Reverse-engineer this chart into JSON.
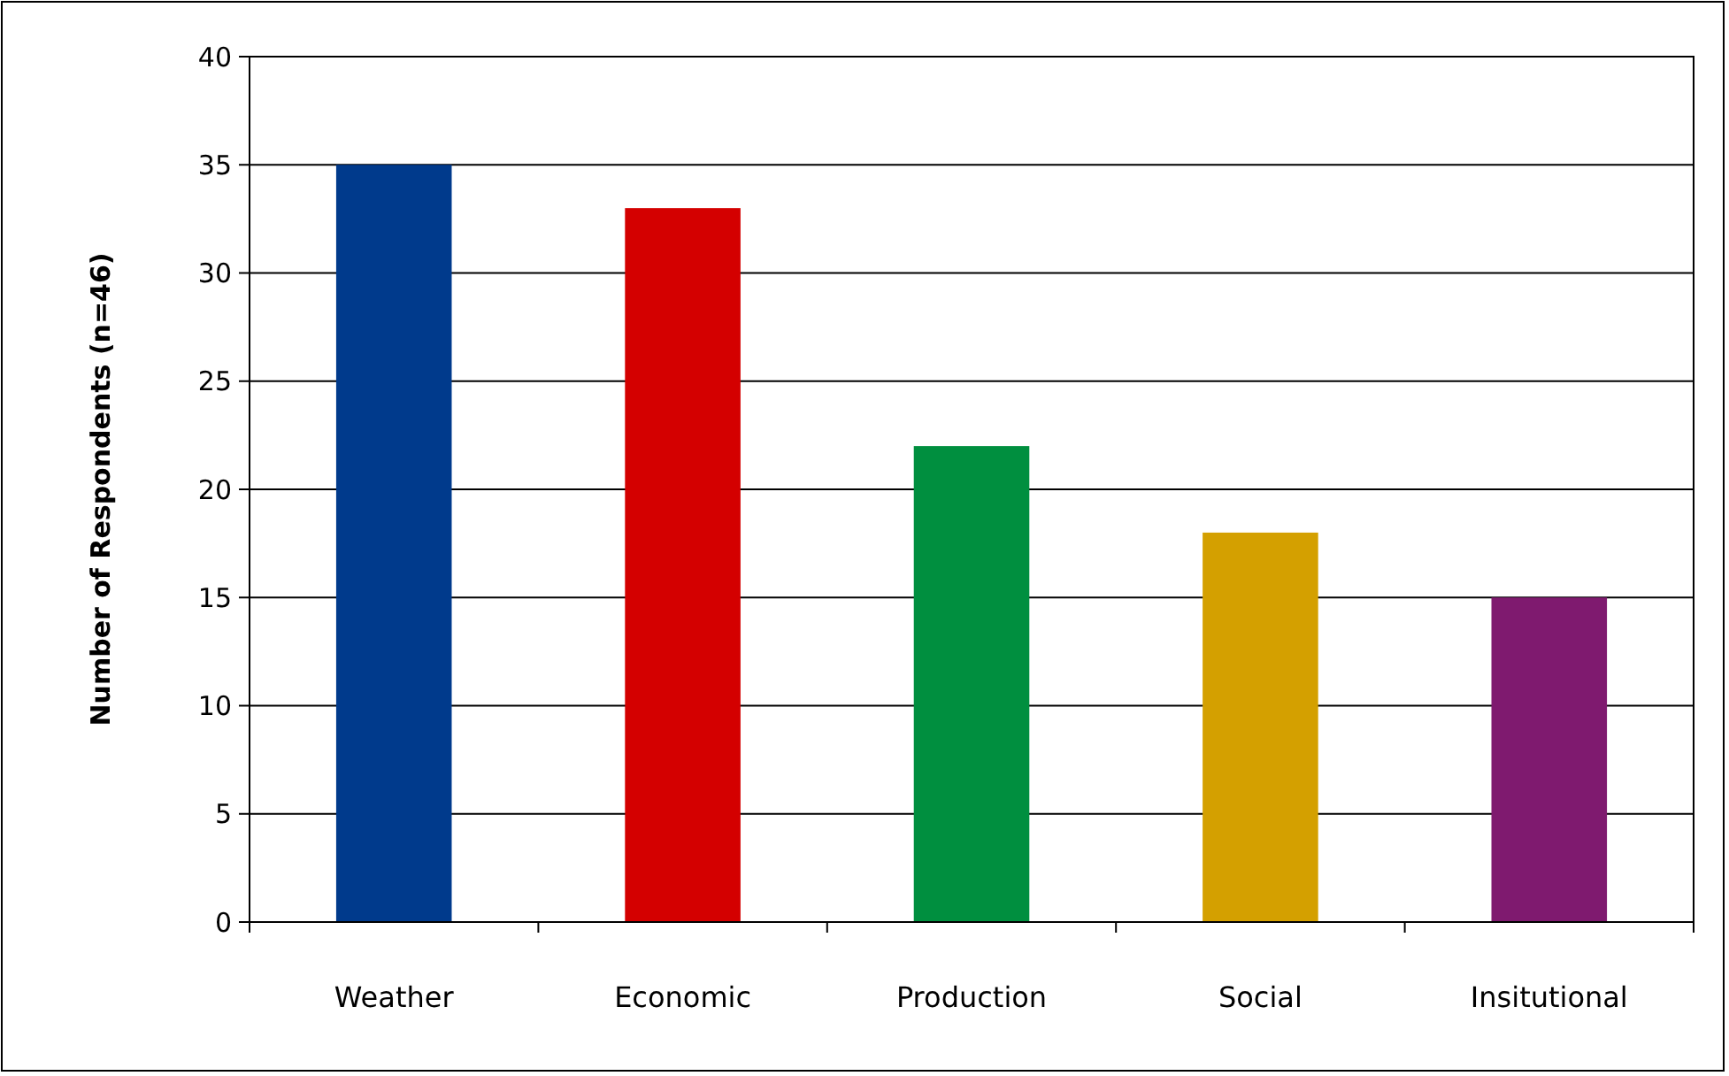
{
  "chart_data": {
    "type": "bar",
    "ylabel": "Number of Respondents  (n=46)",
    "categories": [
      "Weather",
      "Economic",
      "Production",
      "Social",
      "Insitutional"
    ],
    "values": [
      35,
      33,
      22,
      18,
      15
    ],
    "colors": [
      "#003a8c",
      "#d40000",
      "#008f3f",
      "#d4a000",
      "#7f1a6f"
    ],
    "ylim": [
      0,
      40
    ],
    "yticks": [
      0,
      5,
      10,
      15,
      20,
      25,
      30,
      35,
      40
    ],
    "grid": "y"
  }
}
